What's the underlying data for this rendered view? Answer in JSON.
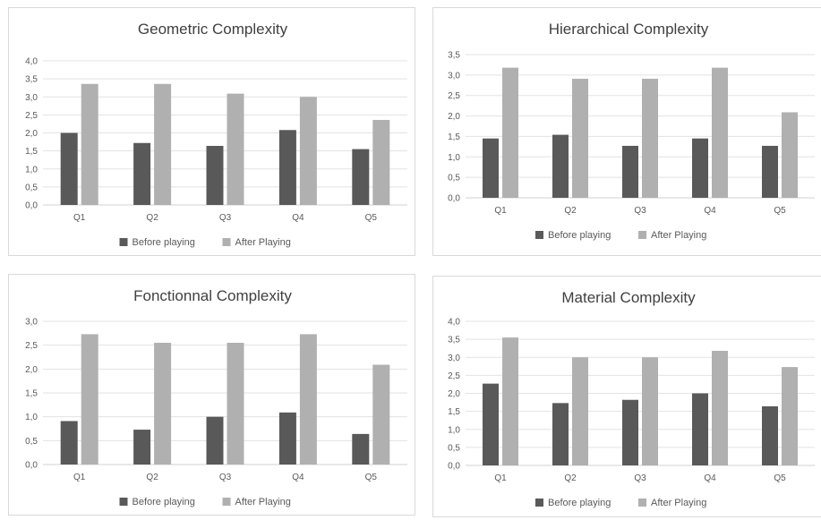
{
  "colors": {
    "before": "#595959",
    "after": "#b0b0b0"
  },
  "legend": {
    "before": "Before playing",
    "after": "After Playing"
  },
  "chart_data": [
    {
      "type": "bar",
      "title": "Geometric Complexity",
      "categories": [
        "Q1",
        "Q2",
        "Q3",
        "Q4",
        "Q5"
      ],
      "ylim": [
        0,
        4
      ],
      "yticks": [
        "0,0",
        "0,5",
        "1,0",
        "1,5",
        "2,0",
        "2,5",
        "3,0",
        "3,5",
        "4,0"
      ],
      "legend_position": "bottom",
      "grid": true,
      "series": [
        {
          "name": "Before playing",
          "values": [
            2.0,
            1.72,
            1.64,
            2.08,
            1.55
          ]
        },
        {
          "name": "After Playing",
          "values": [
            3.36,
            3.36,
            3.09,
            3.0,
            2.36
          ]
        }
      ]
    },
    {
      "type": "bar",
      "title": "Hierarchical Complexity",
      "categories": [
        "Q1",
        "Q2",
        "Q3",
        "Q4",
        "Q5"
      ],
      "ylim": [
        0,
        3.5
      ],
      "yticks": [
        "0,0",
        "0,5",
        "1,0",
        "1,5",
        "2,0",
        "2,5",
        "3,0",
        "3,5"
      ],
      "legend_position": "bottom",
      "grid": true,
      "series": [
        {
          "name": "Before playing",
          "values": [
            1.45,
            1.54,
            1.27,
            1.45,
            1.27
          ]
        },
        {
          "name": "After Playing",
          "values": [
            3.18,
            2.91,
            2.91,
            3.18,
            2.09
          ]
        }
      ]
    },
    {
      "type": "bar",
      "title": "Fonctionnal Complexity",
      "categories": [
        "Q1",
        "Q2",
        "Q3",
        "Q4",
        "Q5"
      ],
      "ylim": [
        0,
        3
      ],
      "yticks": [
        "0,0",
        "0,5",
        "1,0",
        "1,5",
        "2,0",
        "2,5",
        "3,0"
      ],
      "legend_position": "bottom",
      "grid": true,
      "series": [
        {
          "name": "Before playing",
          "values": [
            0.91,
            0.73,
            1.0,
            1.09,
            0.64
          ]
        },
        {
          "name": "After Playing",
          "values": [
            2.73,
            2.55,
            2.55,
            2.73,
            2.09
          ]
        }
      ]
    },
    {
      "type": "bar",
      "title": "Material Complexity",
      "categories": [
        "Q1",
        "Q2",
        "Q3",
        "Q4",
        "Q5"
      ],
      "ylim": [
        0,
        4
      ],
      "yticks": [
        "0,0",
        "0,5",
        "1,0",
        "1,5",
        "2,0",
        "2,5",
        "3,0",
        "3,5",
        "4,0"
      ],
      "legend_position": "bottom",
      "grid": true,
      "series": [
        {
          "name": "Before playing",
          "values": [
            2.27,
            1.73,
            1.82,
            2.0,
            1.64
          ]
        },
        {
          "name": "After Playing",
          "values": [
            3.55,
            3.0,
            3.0,
            3.18,
            2.73
          ]
        }
      ]
    }
  ]
}
